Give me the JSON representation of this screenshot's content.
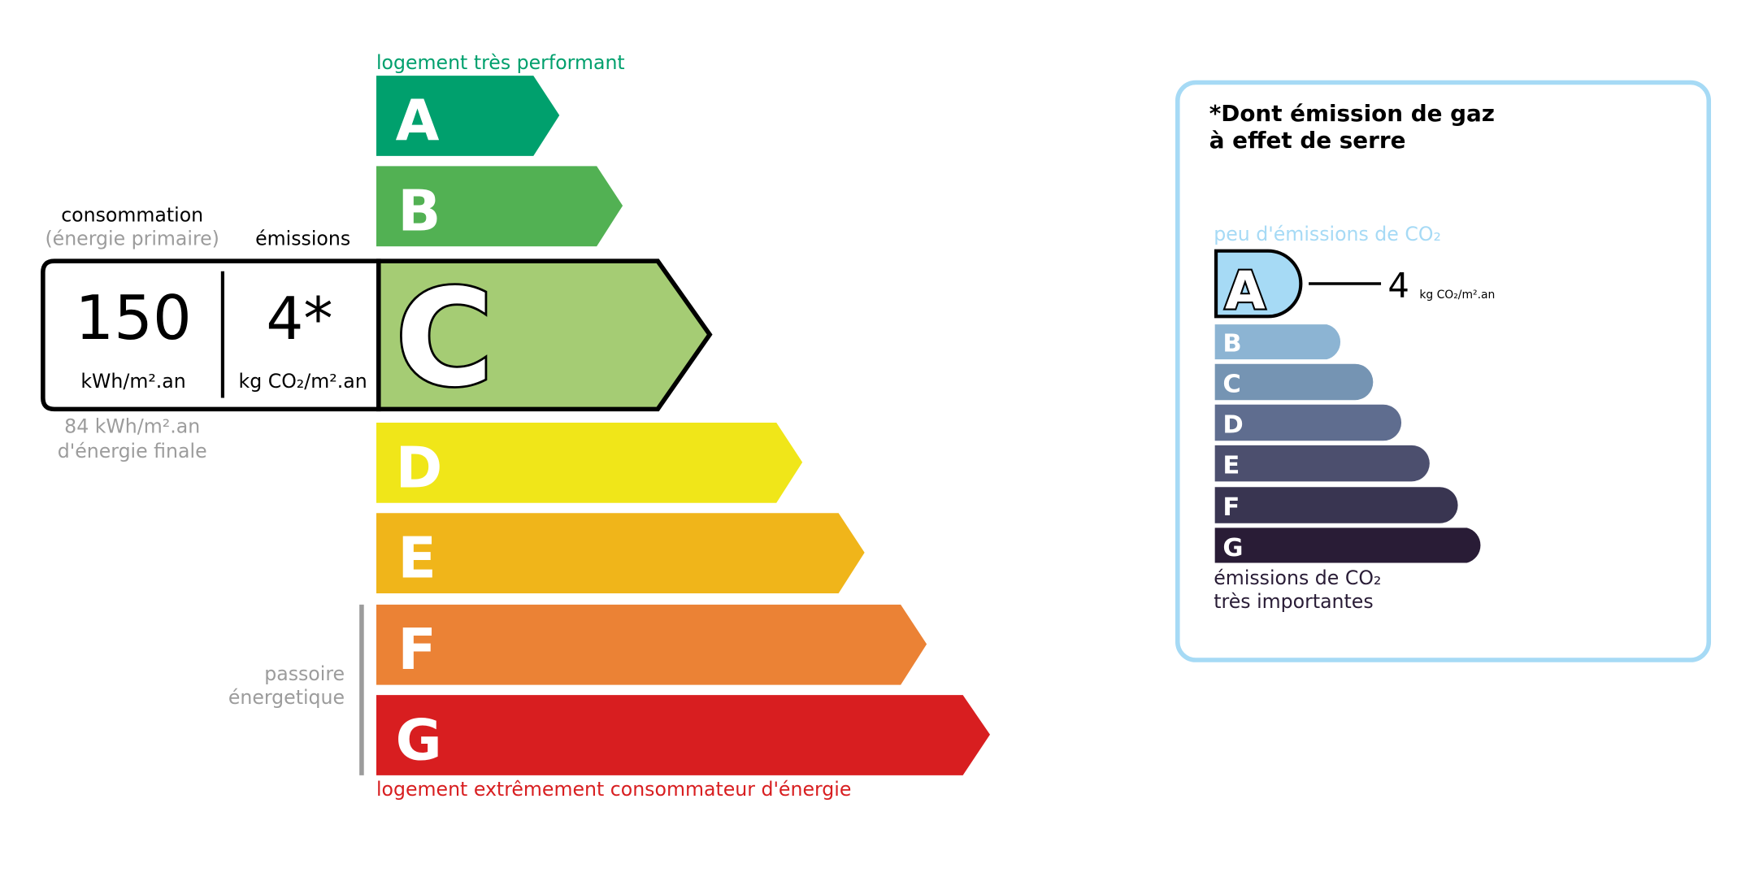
{
  "energy": {
    "top_label": "logement très performant",
    "bottom_label": "logement extrêmement consommateur d'énergie",
    "passoire": [
      "passoire",
      "énergetique"
    ],
    "classes": [
      {
        "letter": "A",
        "color": "#00A06D"
      },
      {
        "letter": "B",
        "color": "#52B153"
      },
      {
        "letter": "C",
        "color": "#A5CC74"
      },
      {
        "letter": "D",
        "color": "#F0E619"
      },
      {
        "letter": "E",
        "color": "#F0B51A"
      },
      {
        "letter": "F",
        "color": "#EB8235"
      },
      {
        "letter": "G",
        "color": "#D81E20"
      }
    ],
    "current_class": "C",
    "consumption_label": "consommation",
    "consumption_sub": "(énergie primaire)",
    "emissions_label": "émissions",
    "consumption_value": "150",
    "consumption_unit": "kWh/m².an",
    "emissions_value": "4*",
    "emissions_unit": "kg CO₂/m².an",
    "final_energy_value": "84 kWh/m².an",
    "final_energy_label": "d'énergie finale"
  },
  "ges": {
    "title_line1": "*Dont émission de gaz",
    "title_line2": "à effet de serre",
    "top_label": "peu d'émissions de CO₂",
    "bottom_label_line1": "émissions de CO₂",
    "bottom_label_line2": "très importantes",
    "current_class": "A",
    "value": "4",
    "unit": "kg CO₂/m².an",
    "classes": [
      {
        "letter": "A",
        "color": "#A6DAF5"
      },
      {
        "letter": "B",
        "color": "#8CB4D3"
      },
      {
        "letter": "C",
        "color": "#7594B3"
      },
      {
        "letter": "D",
        "color": "#5F6D8F"
      },
      {
        "letter": "E",
        "color": "#4C4F6E"
      },
      {
        "letter": "F",
        "color": "#393551"
      },
      {
        "letter": "G",
        "color": "#291C36"
      }
    ],
    "border_color": "#A6DAF5"
  }
}
